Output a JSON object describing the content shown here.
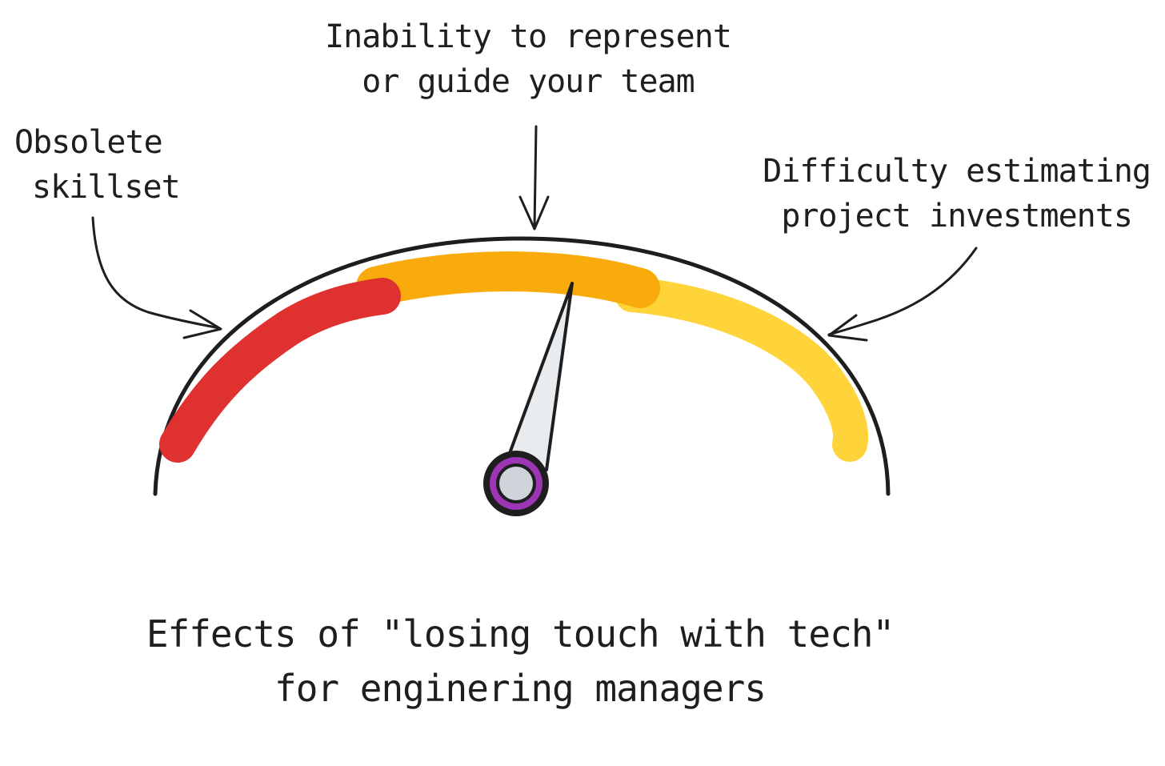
{
  "annotations": {
    "top": [
      "Inability to represent",
      "or guide your team"
    ],
    "left": [
      "Obsolete",
      "skillset"
    ],
    "right": [
      "Difficulty estimating",
      "project investments"
    ]
  },
  "caption": [
    "Effects of \"losing touch with tech\"",
    "for enginering managers"
  ],
  "gauge": {
    "needle_level": 0.55,
    "zones": [
      {
        "name": "red",
        "color": "#e03131"
      },
      {
        "name": "orange",
        "color": "#f8ab0b"
      },
      {
        "name": "yellow",
        "color": "#ffd43b"
      }
    ],
    "needle_fill": "#e9ecef",
    "hub_ring_color": "#9c36b5",
    "hub_fill": "#ced4da",
    "outline_color": "#1e1e1e"
  }
}
